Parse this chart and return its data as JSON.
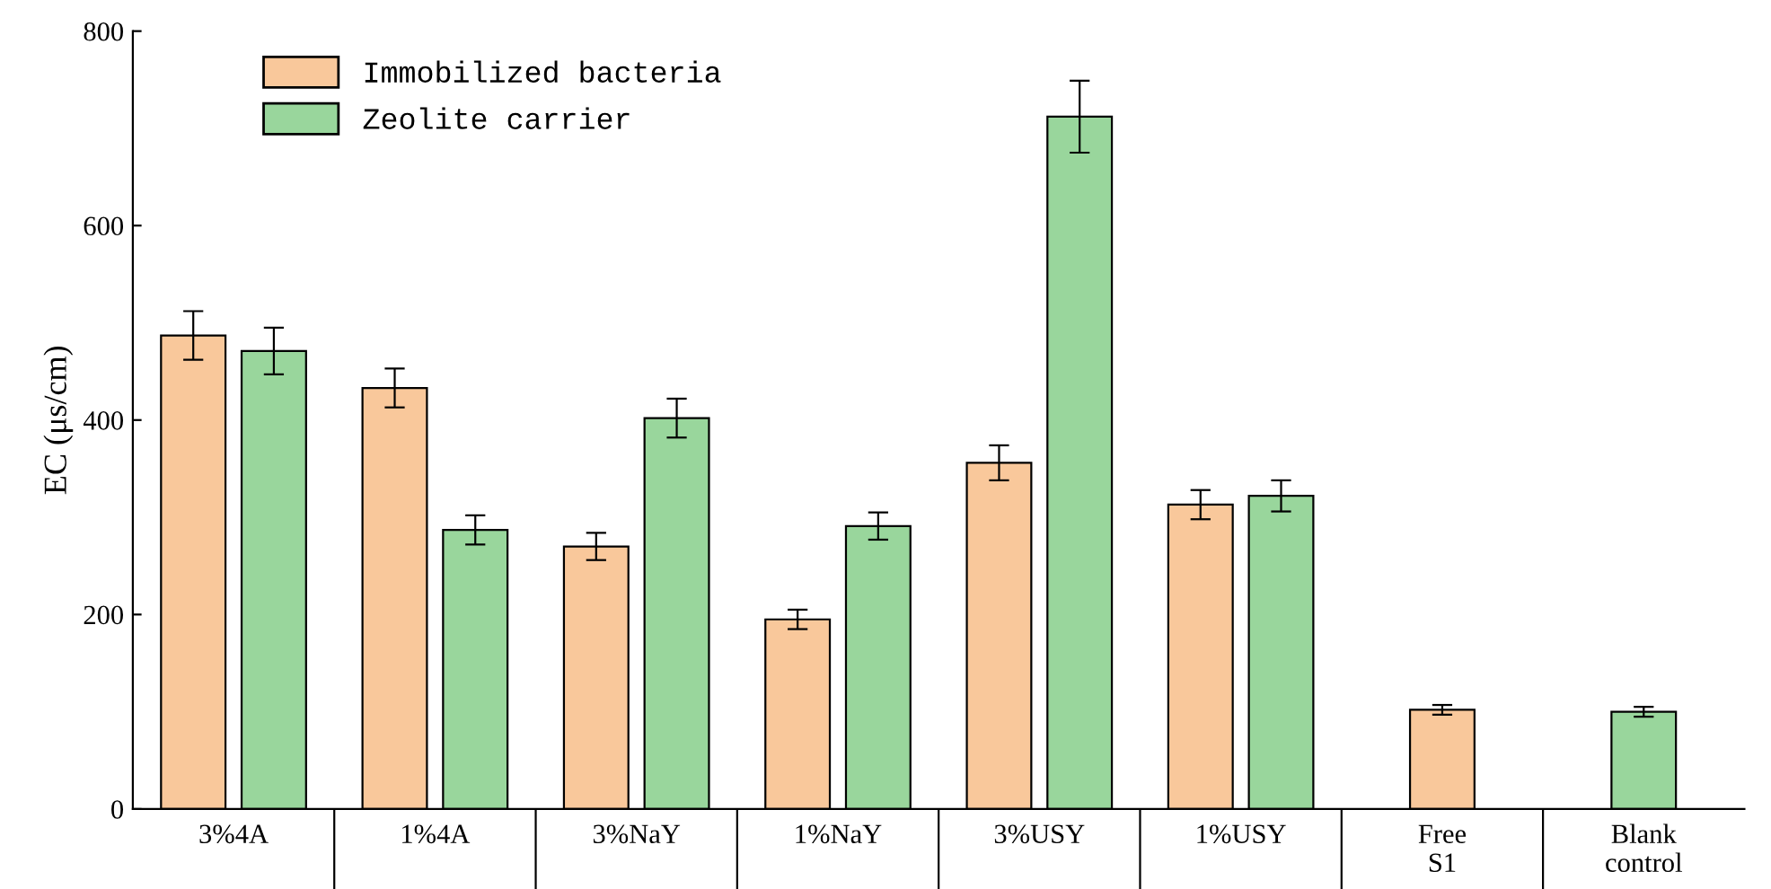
{
  "chart_data": {
    "type": "bar",
    "ylabel": "EC (μs/cm)",
    "categories": [
      "3%4A",
      "1%4A",
      "3%NaY",
      "1%NaY",
      "3%USY",
      "1%USY",
      "Free\nS1",
      "Blank\ncontrol"
    ],
    "series": [
      {
        "name": "Immobilized bacteria",
        "color": "#f9c89b",
        "values": [
          487,
          433,
          270,
          195,
          356,
          313,
          102,
          null
        ],
        "errors": [
          25,
          20,
          14,
          10,
          18,
          15,
          5,
          null
        ]
      },
      {
        "name": "Zeolite carrier",
        "color": "#99d69c",
        "values": [
          471,
          287,
          402,
          291,
          712,
          322,
          null,
          100
        ],
        "errors": [
          24,
          15,
          20,
          14,
          37,
          16,
          null,
          5
        ]
      }
    ],
    "ylim": [
      0,
      800
    ],
    "yticks": [
      0,
      200,
      400,
      600,
      800
    ],
    "grid": false,
    "legend": "top left"
  }
}
